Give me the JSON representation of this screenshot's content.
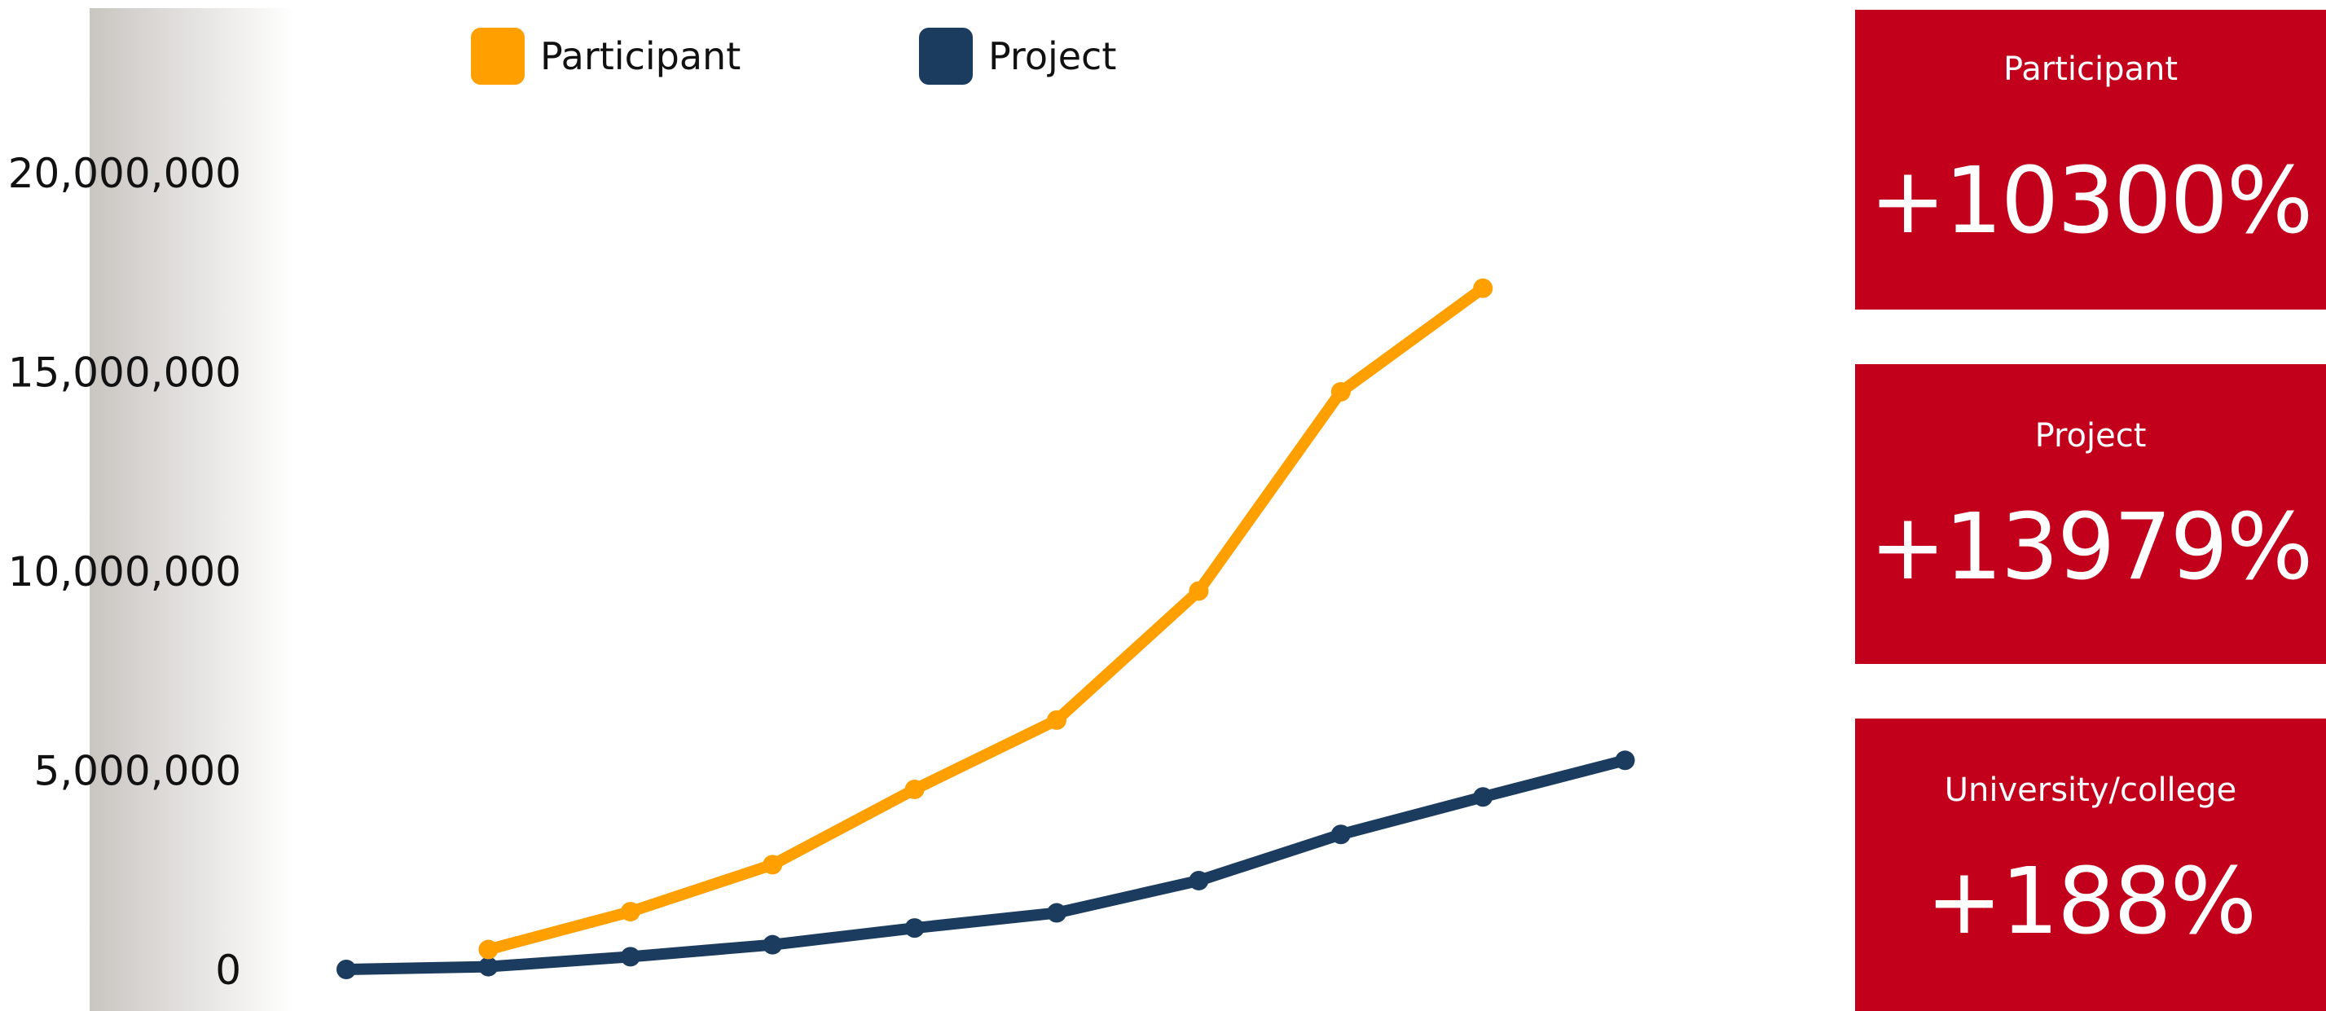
{
  "chart_data": {
    "type": "line",
    "title": "",
    "xlabel": "",
    "ylabel": "",
    "ylim": [
      0,
      23000000
    ],
    "yticks": [
      0,
      5000000,
      10000000,
      15000000,
      20000000
    ],
    "ytick_labels": [
      "0",
      "5,000,000",
      "10,000,000",
      "15,000,000",
      "20,000,000"
    ],
    "x": [
      1,
      2,
      3,
      4,
      5,
      6,
      7,
      8,
      9,
      10
    ],
    "legend_position": "top-left",
    "grid": false,
    "series": [
      {
        "name": "Participant",
        "color": "#FF9F00",
        "values": [
          null,
          500000,
          1450000,
          2630000,
          4520000,
          6260000,
          9500000,
          14500000,
          17100000,
          null
        ]
      },
      {
        "name": "Project",
        "color": "#1B3C5E",
        "values": [
          0,
          70000,
          320000,
          620000,
          1040000,
          1420000,
          2230000,
          3390000,
          4330000,
          5250000
        ]
      }
    ]
  },
  "stats": [
    {
      "label": "Participant",
      "value": "+10300%"
    },
    {
      "label": "Project",
      "value": "+13979%"
    },
    {
      "label": "University/college",
      "value": "+188%"
    }
  ],
  "colors": {
    "card_background": "#C2001C",
    "axis_band_start": "#C9C5C1",
    "axis_band_end": "#FFFFFF"
  }
}
